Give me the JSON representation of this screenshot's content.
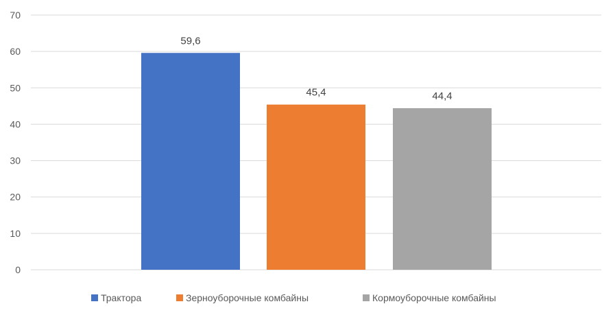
{
  "chart_data": {
    "type": "bar",
    "title": "",
    "xlabel": "",
    "ylabel": "",
    "ylim": [
      0,
      70
    ],
    "y_ticks": [
      "0",
      "10",
      "20",
      "30",
      "40",
      "50",
      "60",
      "70"
    ],
    "grid": true,
    "legend_position": "bottom",
    "categories": [
      ""
    ],
    "series": [
      {
        "name": "Трактора",
        "values": [
          59.6
        ],
        "label": "59,6",
        "color": "#4472C4"
      },
      {
        "name": "Зерноуборочные комбайны",
        "values": [
          45.4
        ],
        "label": "45,4",
        "color": "#ED7D31"
      },
      {
        "name": "Кормоуборочные комбайны",
        "values": [
          44.4
        ],
        "label": "44,4",
        "color": "#A5A5A5"
      }
    ]
  }
}
